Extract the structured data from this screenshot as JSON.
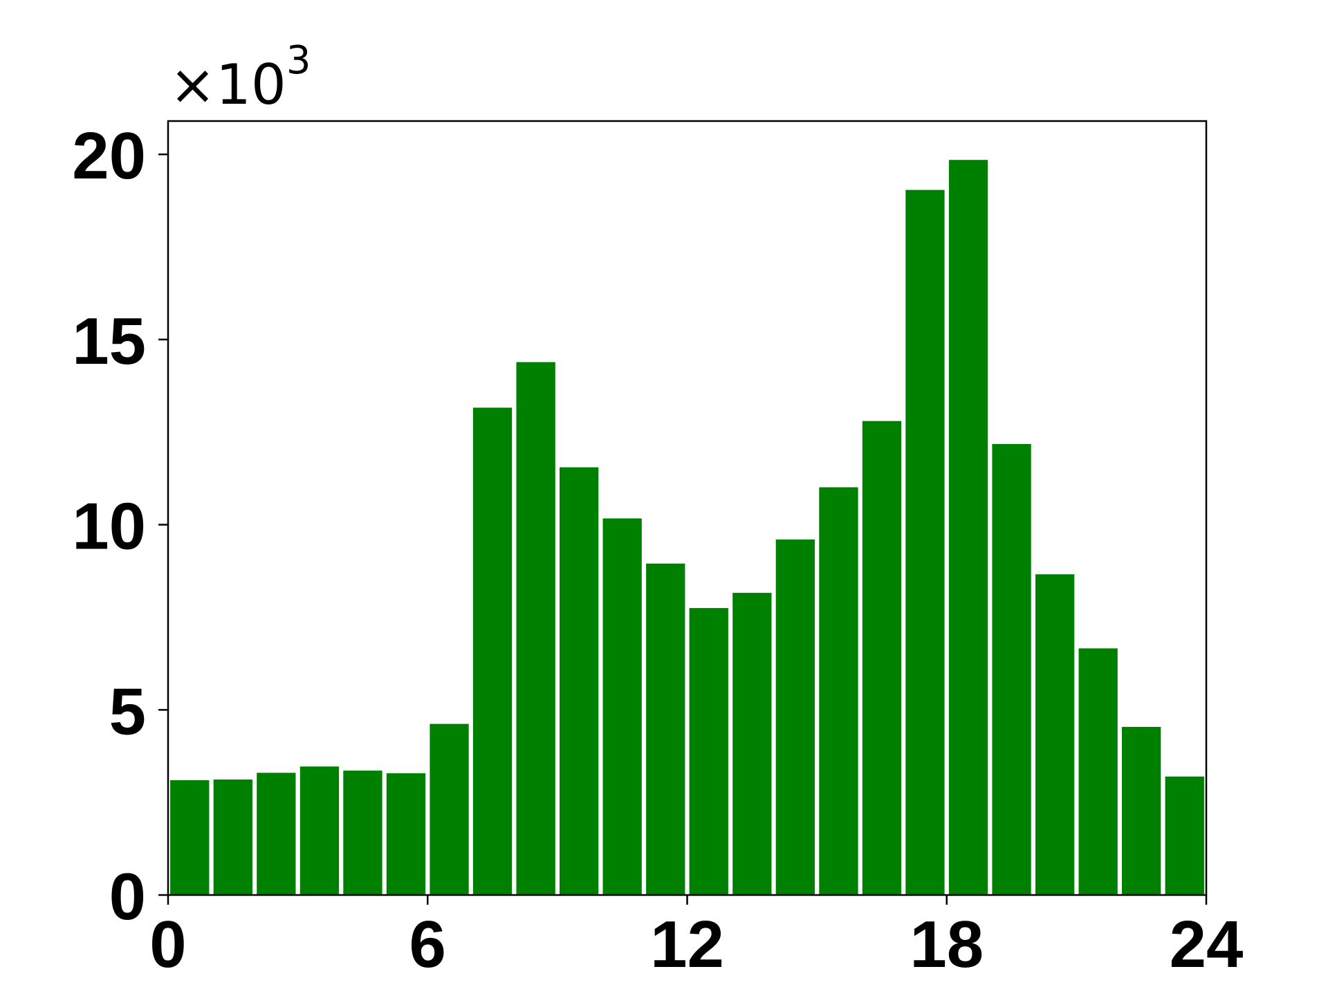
{
  "chart_data": {
    "type": "bar",
    "title": "",
    "xlabel": "",
    "ylabel": "",
    "y_multiplier": {
      "base": "×10",
      "exponent": "3"
    },
    "bar_color": "#008000",
    "xlim": [
      0,
      24
    ],
    "ylim": [
      0,
      20.9
    ],
    "grid": false,
    "x_ticks": [
      0,
      6,
      12,
      18,
      24
    ],
    "x_tick_labels": [
      "0",
      "6",
      "12",
      "18",
      "24"
    ],
    "y_ticks": [
      0,
      5,
      10,
      15,
      20
    ],
    "y_tick_labels": [
      "0",
      "5",
      "10",
      "15",
      "20"
    ],
    "categories": [
      0,
      1,
      2,
      3,
      4,
      5,
      6,
      7,
      8,
      9,
      10,
      11,
      12,
      13,
      14,
      15,
      16,
      17,
      18,
      19,
      20,
      21,
      22,
      23
    ],
    "values": [
      3.1,
      3.12,
      3.3,
      3.47,
      3.36,
      3.29,
      4.62,
      13.16,
      14.39,
      11.55,
      10.17,
      8.95,
      7.75,
      8.16,
      9.6,
      11.01,
      12.8,
      19.04,
      19.85,
      12.18,
      8.66,
      6.66,
      4.54,
      3.2
    ]
  }
}
